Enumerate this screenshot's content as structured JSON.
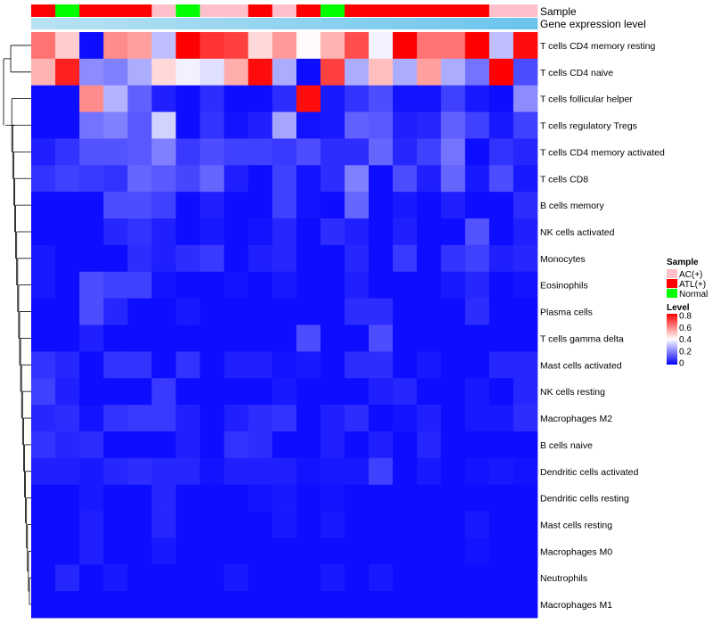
{
  "chart_data": {
    "type": "heatmap",
    "title": "",
    "color_scale": {
      "title": "Level",
      "min": 0,
      "max": 0.8,
      "ticks": [
        0.8,
        0.6,
        0.4,
        0.2,
        0
      ],
      "colors": [
        "#0000ff",
        "#ffffff",
        "#ff0000"
      ]
    },
    "sample_annotation": {
      "label": "Sample",
      "legend_title": "Sample",
      "categories": [
        {
          "name": "AC(+)",
          "color": "#ffc0cb"
        },
        {
          "name": "ATL(+)",
          "color": "#ff0000"
        },
        {
          "name": "Normal",
          "color": "#00ff00"
        }
      ],
      "values": [
        "ATL(+)",
        "Normal",
        "ATL(+)",
        "ATL(+)",
        "ATL(+)",
        "AC(+)",
        "Normal",
        "AC(+)",
        "AC(+)",
        "ATL(+)",
        "AC(+)",
        "ATL(+)",
        "Normal",
        "ATL(+)",
        "ATL(+)",
        "ATL(+)",
        "ATL(+)",
        "ATL(+)",
        "ATL(+)",
        "AC(+)",
        "AC(+)"
      ]
    },
    "gene_annotation": {
      "label": "Gene expression level",
      "start_color": "#b8e2f2",
      "end_color": "#6cc4ec"
    },
    "rows": [
      {
        "name": "T cells CD4 memory resting",
        "values": [
          0.62,
          0.48,
          0.02,
          0.58,
          0.55,
          0.3,
          0.8,
          0.72,
          0.7,
          0.46,
          0.56,
          0.41,
          0.52,
          0.68,
          0.38,
          0.8,
          0.62,
          0.62,
          0.8,
          0.3,
          0.78
        ]
      },
      {
        "name": "T cells CD4 naive",
        "values": [
          0.52,
          0.75,
          0.22,
          0.2,
          0.27,
          0.46,
          0.38,
          0.35,
          0.53,
          0.78,
          0.27,
          0.02,
          0.7,
          0.27,
          0.5,
          0.27,
          0.55,
          0.27,
          0.18,
          0.8,
          0.12
        ]
      },
      {
        "name": "T cells follicular helper",
        "values": [
          0.02,
          0.02,
          0.58,
          0.28,
          0.15,
          0.05,
          0.02,
          0.07,
          0.02,
          0.02,
          0.07,
          0.78,
          0.04,
          0.08,
          0.12,
          0.03,
          0.03,
          0.1,
          0.04,
          0.02,
          0.22
        ]
      },
      {
        "name": "T cells regulatory  Tregs",
        "values": [
          0.02,
          0.02,
          0.18,
          0.2,
          0.14,
          0.33,
          0.02,
          0.08,
          0.03,
          0.05,
          0.26,
          0.03,
          0.04,
          0.15,
          0.14,
          0.05,
          0.06,
          0.15,
          0.1,
          0.04,
          0.1
        ]
      },
      {
        "name": "T cells CD4 memory activated",
        "values": [
          0.05,
          0.08,
          0.13,
          0.13,
          0.14,
          0.2,
          0.09,
          0.12,
          0.1,
          0.1,
          0.09,
          0.12,
          0.07,
          0.07,
          0.16,
          0.06,
          0.1,
          0.18,
          0.02,
          0.08,
          0.06
        ]
      },
      {
        "name": "T cells CD8",
        "values": [
          0.08,
          0.1,
          0.09,
          0.08,
          0.16,
          0.14,
          0.11,
          0.16,
          0.05,
          0.02,
          0.1,
          0.03,
          0.07,
          0.2,
          0.02,
          0.12,
          0.05,
          0.16,
          0.04,
          0.12,
          0.04
        ]
      },
      {
        "name": "B cells memory",
        "values": [
          0.02,
          0.02,
          0.02,
          0.12,
          0.12,
          0.1,
          0.02,
          0.05,
          0.02,
          0.02,
          0.1,
          0.03,
          0.02,
          0.16,
          0.02,
          0.04,
          0.02,
          0.05,
          0.02,
          0.02,
          0.07
        ]
      },
      {
        "name": "NK cells activated",
        "values": [
          0.02,
          0.02,
          0.02,
          0.06,
          0.08,
          0.05,
          0.02,
          0.04,
          0.02,
          0.03,
          0.06,
          0.02,
          0.07,
          0.05,
          0.02,
          0.05,
          0.02,
          0.02,
          0.13,
          0.02,
          0.05
        ]
      },
      {
        "name": "Monocytes",
        "values": [
          0.04,
          0.02,
          0.02,
          0.02,
          0.07,
          0.05,
          0.07,
          0.09,
          0.02,
          0.05,
          0.06,
          0.02,
          0.02,
          0.06,
          0.02,
          0.09,
          0.02,
          0.08,
          0.1,
          0.05,
          0.06
        ]
      },
      {
        "name": "Eosinophils",
        "values": [
          0.04,
          0.02,
          0.12,
          0.1,
          0.1,
          0.03,
          0.02,
          0.02,
          0.03,
          0.02,
          0.04,
          0.02,
          0.02,
          0.05,
          0.02,
          0.02,
          0.02,
          0.04,
          0.06,
          0.02,
          0.03
        ]
      },
      {
        "name": "Plasma cells",
        "values": [
          0.02,
          0.02,
          0.12,
          0.06,
          0.02,
          0.02,
          0.04,
          0.02,
          0.02,
          0.02,
          0.02,
          0.02,
          0.02,
          0.07,
          0.07,
          0.02,
          0.02,
          0.02,
          0.07,
          0.02,
          0.02
        ]
      },
      {
        "name": "T cells gamma delta",
        "values": [
          0.02,
          0.02,
          0.05,
          0.02,
          0.02,
          0.02,
          0.02,
          0.02,
          0.02,
          0.02,
          0.02,
          0.12,
          0.02,
          0.02,
          0.12,
          0.02,
          0.02,
          0.02,
          0.02,
          0.02,
          0.02
        ]
      },
      {
        "name": "Mast cells activated",
        "values": [
          0.08,
          0.06,
          0.02,
          0.08,
          0.08,
          0.02,
          0.08,
          0.02,
          0.05,
          0.05,
          0.03,
          0.04,
          0.02,
          0.07,
          0.07,
          0.02,
          0.04,
          0.02,
          0.02,
          0.06,
          0.06
        ]
      },
      {
        "name": "NK cells resting",
        "values": [
          0.1,
          0.05,
          0.02,
          0.02,
          0.02,
          0.09,
          0.02,
          0.02,
          0.02,
          0.02,
          0.04,
          0.02,
          0.02,
          0.02,
          0.05,
          0.06,
          0.02,
          0.02,
          0.04,
          0.02,
          0.06
        ]
      },
      {
        "name": "Macrophages M2",
        "values": [
          0.06,
          0.07,
          0.03,
          0.08,
          0.09,
          0.09,
          0.05,
          0.02,
          0.05,
          0.07,
          0.08,
          0.02,
          0.05,
          0.07,
          0.02,
          0.03,
          0.05,
          0.02,
          0.04,
          0.04,
          0.07
        ]
      },
      {
        "name": "B cells naive",
        "values": [
          0.08,
          0.06,
          0.07,
          0.02,
          0.02,
          0.02,
          0.05,
          0.02,
          0.08,
          0.07,
          0.02,
          0.02,
          0.05,
          0.02,
          0.05,
          0.02,
          0.06,
          0.02,
          0.02,
          0.02,
          0.02
        ]
      },
      {
        "name": "Dendritic cells activated",
        "values": [
          0.05,
          0.05,
          0.04,
          0.06,
          0.07,
          0.06,
          0.06,
          0.03,
          0.05,
          0.05,
          0.05,
          0.03,
          0.04,
          0.04,
          0.1,
          0.02,
          0.04,
          0.02,
          0.03,
          0.04,
          0.03
        ]
      },
      {
        "name": "Dendritic cells resting",
        "values": [
          0.02,
          0.02,
          0.04,
          0.02,
          0.02,
          0.06,
          0.02,
          0.02,
          0.02,
          0.03,
          0.04,
          0.02,
          0.03,
          0.02,
          0.02,
          0.02,
          0.02,
          0.02,
          0.02,
          0.02,
          0.02
        ]
      },
      {
        "name": "Mast cells resting",
        "values": [
          0.02,
          0.02,
          0.05,
          0.02,
          0.02,
          0.06,
          0.02,
          0.02,
          0.02,
          0.02,
          0.04,
          0.02,
          0.04,
          0.02,
          0.02,
          0.02,
          0.02,
          0.02,
          0.04,
          0.02,
          0.02
        ]
      },
      {
        "name": "Macrophages M0",
        "values": [
          0.02,
          0.02,
          0.05,
          0.02,
          0.02,
          0.04,
          0.02,
          0.02,
          0.02,
          0.02,
          0.02,
          0.02,
          0.02,
          0.02,
          0.02,
          0.02,
          0.02,
          0.02,
          0.03,
          0.02,
          0.02
        ]
      },
      {
        "name": "Neutrophils",
        "values": [
          0.02,
          0.06,
          0.02,
          0.04,
          0.02,
          0.02,
          0.02,
          0.02,
          0.04,
          0.02,
          0.02,
          0.02,
          0.04,
          0.02,
          0.04,
          0.02,
          0.02,
          0.02,
          0.02,
          0.02,
          0.02
        ]
      },
      {
        "name": "Macrophages M1",
        "values": [
          0.02,
          0.02,
          0.02,
          0.02,
          0.02,
          0.02,
          0.02,
          0.02,
          0.02,
          0.02,
          0.02,
          0.02,
          0.02,
          0.02,
          0.02,
          0.02,
          0.02,
          0.02,
          0.02,
          0.02,
          0.02
        ]
      }
    ]
  }
}
